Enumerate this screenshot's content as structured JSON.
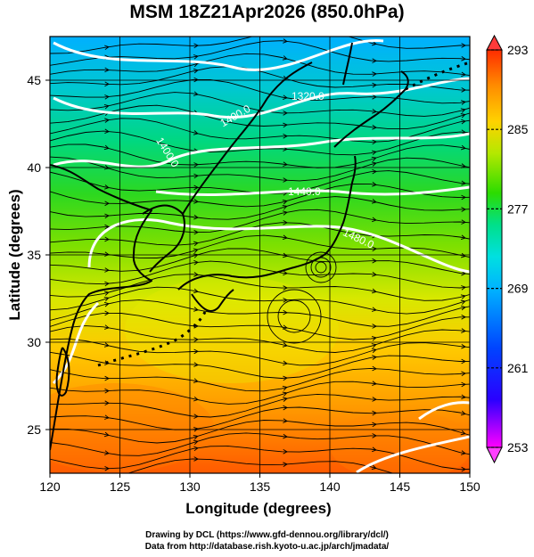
{
  "title": "MSM 18Z21Apr2026 (850.0hPa)",
  "map": {
    "xlabel": "Longitude (degrees)",
    "ylabel": "Latitude  (degrees)",
    "lon_ticks": [
      "120",
      "125",
      "130",
      "135",
      "140",
      "145",
      "150"
    ],
    "lat_ticks": [
      "25",
      "30",
      "35",
      "40",
      "45"
    ],
    "lon_range": [
      120,
      150
    ],
    "lat_range": [
      22.5,
      47.5
    ],
    "contour_labels": [
      "1320.0",
      "1400.0",
      "1400.0",
      "1440.0",
      "1480.0"
    ]
  },
  "colorbar": {
    "tick_labels": [
      "293",
      "285",
      "277",
      "269",
      "261",
      "253"
    ],
    "range": [
      253,
      293
    ],
    "palette": [
      "#ff00ff",
      "#2a00ff",
      "#0044ff",
      "#00b4ff",
      "#00e0e0",
      "#00e08a",
      "#2cdc00",
      "#b4e800",
      "#ffd200",
      "#ff8c00",
      "#ff2c00"
    ]
  },
  "credits": {
    "line1": "Drawing by DCL (https://www.gfd-dennou.org/library/dcl/)",
    "line2": "Data from http://database.rish.kyoto-u.ac.jp/arch/jmadata/"
  }
}
